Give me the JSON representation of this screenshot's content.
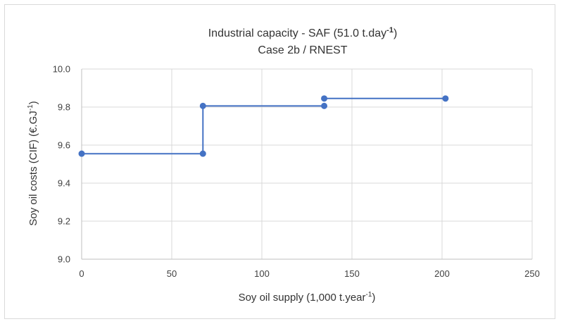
{
  "chart_data": {
    "type": "line",
    "title_line1": "Industrial capacity - SAF (51.0 t.day",
    "title_line1_sup": "-1",
    "title_line1_end": ")",
    "title_line2": "Case 2b / RNEST",
    "xlabel": "Soy oil supply (1,000 t.year",
    "xlabel_sup": "-1",
    "xlabel_end": ")",
    "ylabel": "Soy oil costs (CIF) (€.GJ",
    "ylabel_sup": "-1",
    "ylabel_end": ")",
    "xlim": [
      0,
      250
    ],
    "ylim": [
      9.0,
      10.0
    ],
    "x_ticks": [
      0,
      50,
      100,
      150,
      200,
      250
    ],
    "x_tick_labels": [
      "0",
      "50",
      "100",
      "150",
      "200",
      "250"
    ],
    "y_ticks": [
      9.0,
      9.2,
      9.4,
      9.6,
      9.8,
      10.0
    ],
    "y_tick_labels": [
      "9.0",
      "9.2",
      "9.4",
      "9.6",
      "9.8",
      "10.0"
    ],
    "grid": true,
    "legend": "none",
    "series": [
      {
        "color": "#4472c4",
        "segments": [
          [
            [
              0,
              9.555
            ],
            [
              67.3,
              9.555
            ],
            [
              67.3,
              9.806
            ],
            [
              134.6,
              9.806
            ]
          ],
          [
            [
              134.6,
              9.845
            ],
            [
              201.9,
              9.845
            ]
          ]
        ],
        "points": [
          [
            0,
            9.555
          ],
          [
            67.3,
            9.555
          ],
          [
            67.3,
            9.806
          ],
          [
            134.6,
            9.806
          ],
          [
            134.6,
            9.845
          ],
          [
            201.9,
            9.845
          ]
        ]
      }
    ]
  }
}
